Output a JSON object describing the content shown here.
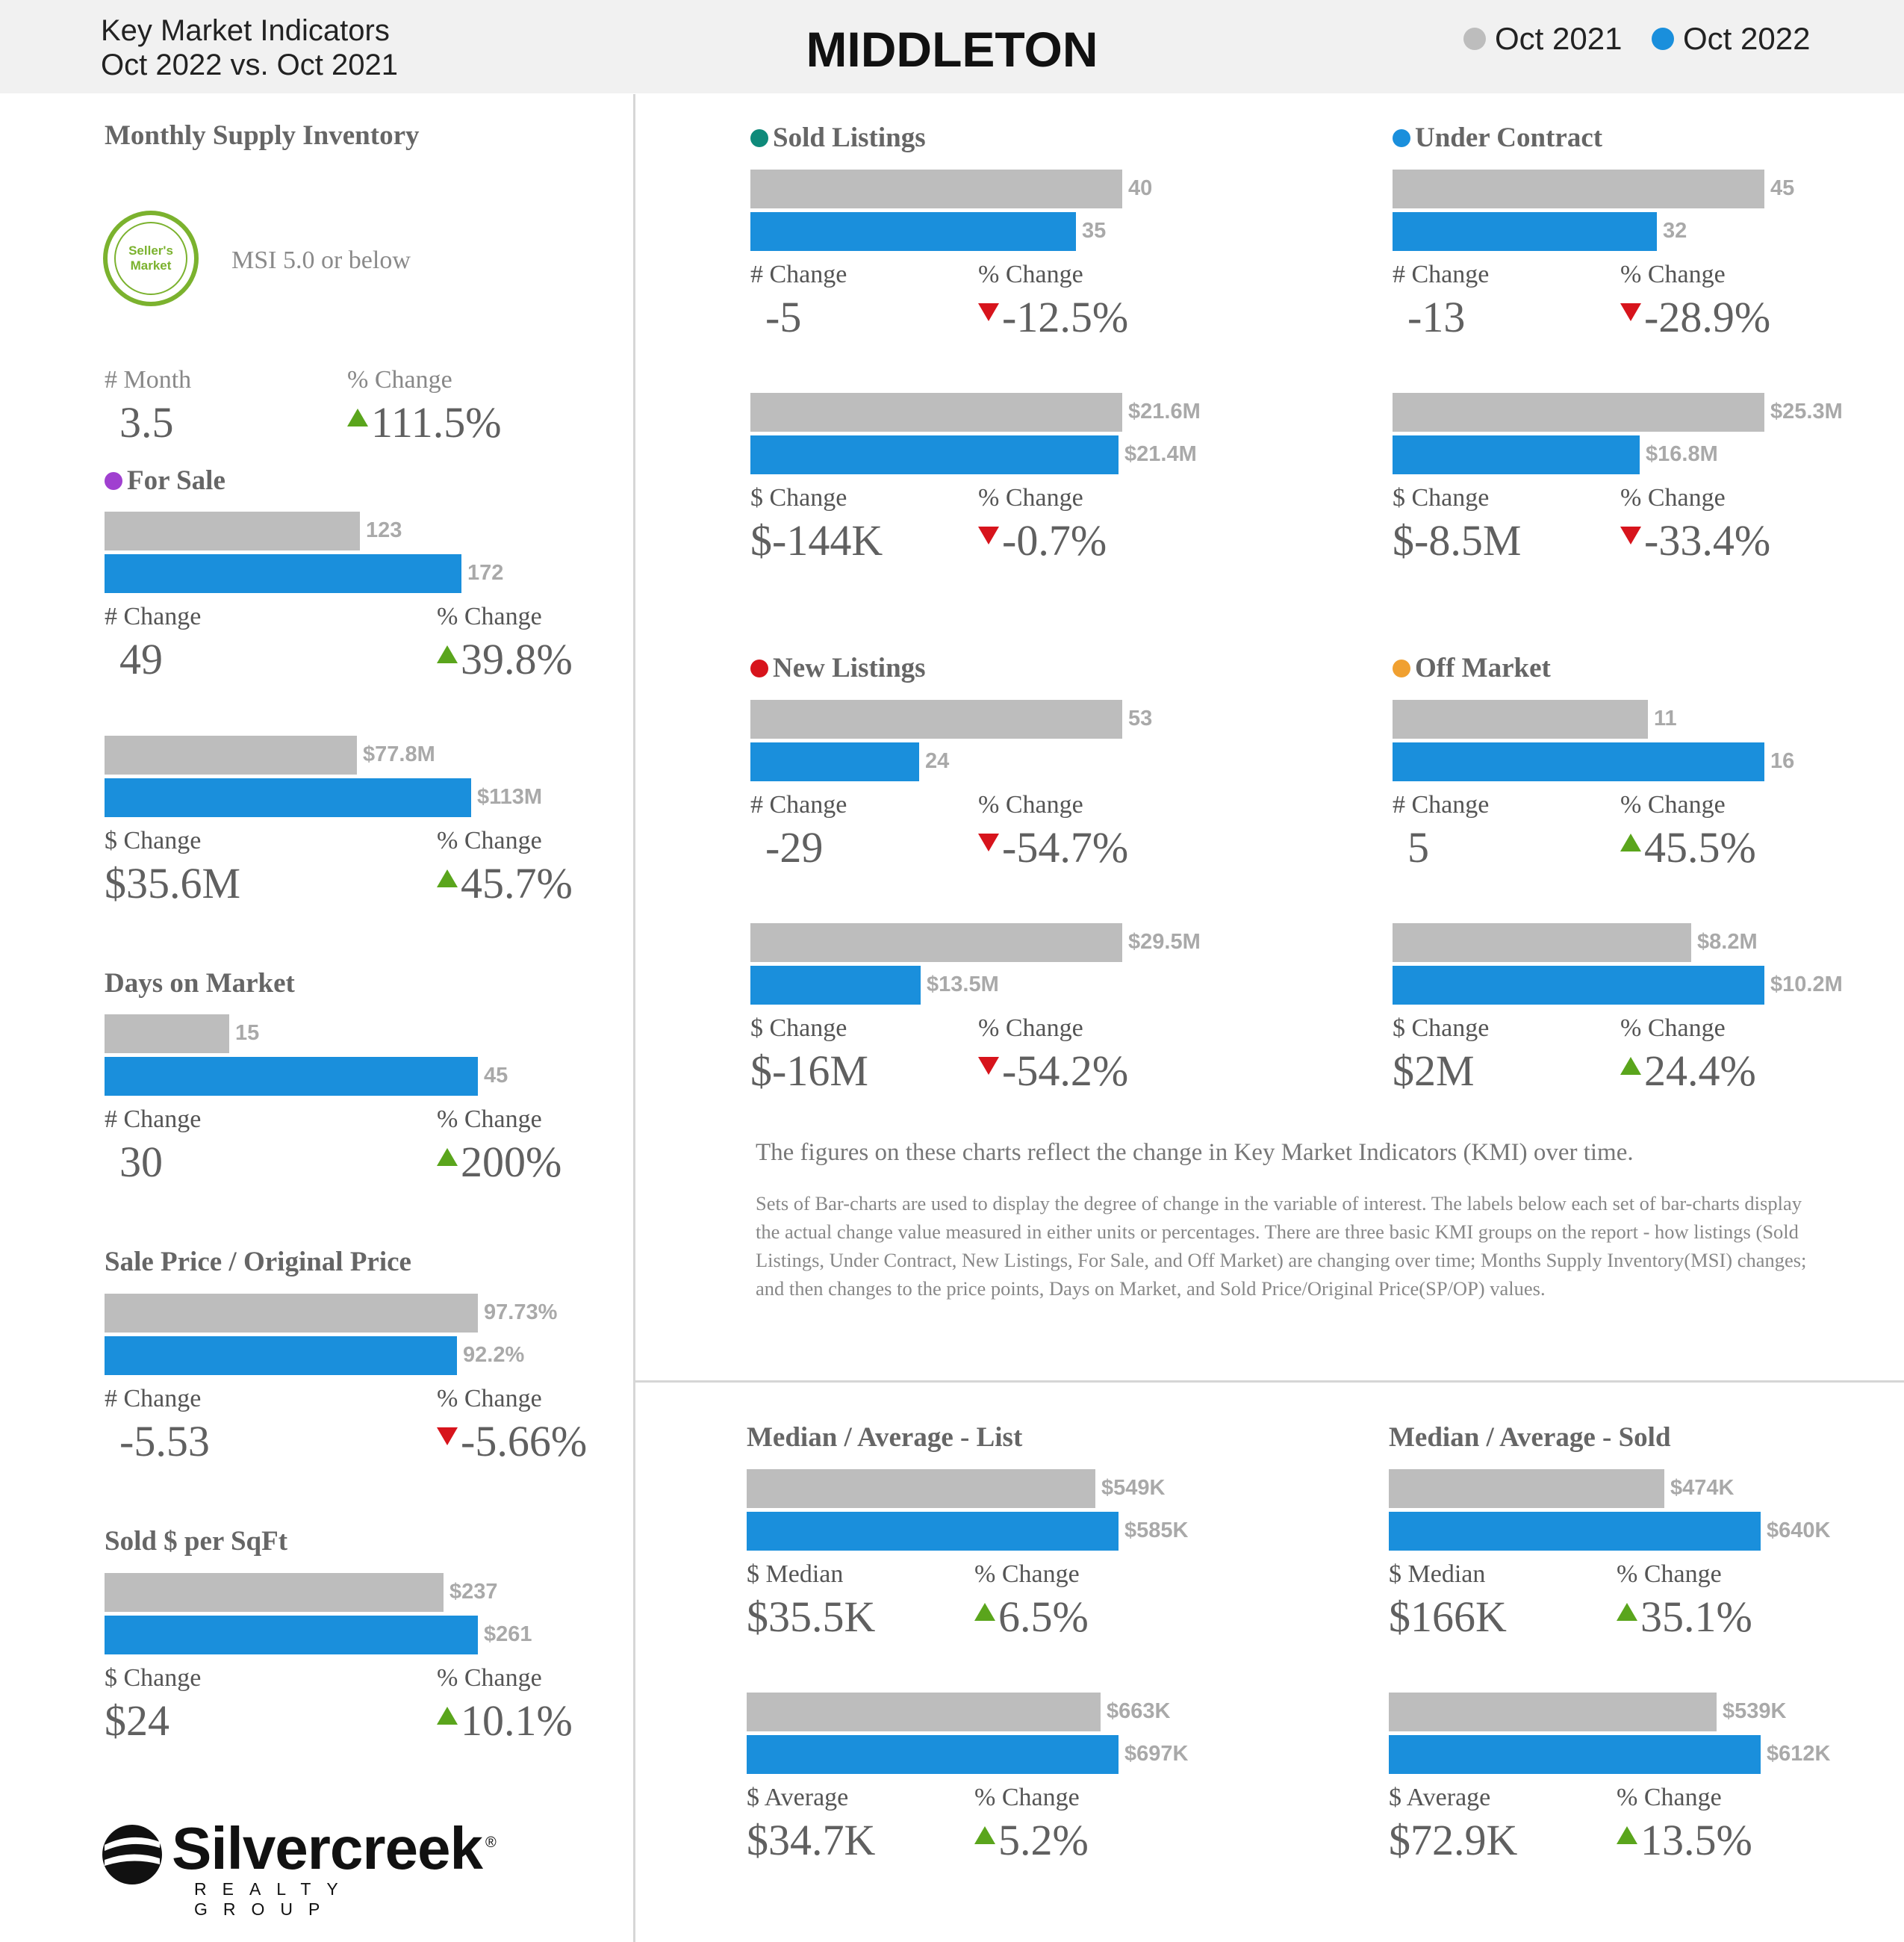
{
  "header": {
    "subtitle_line1": "Key Market Indicators",
    "subtitle_line2": "Oct 2022 vs. Oct 2021",
    "title": "MIDDLETON",
    "legend": [
      {
        "label": "Oct 2021",
        "color": "#bdbdbd"
      },
      {
        "label": "Oct 2022",
        "color": "#1a8fdc"
      }
    ]
  },
  "msi": {
    "title": "Monthly Supply Inventory",
    "badge_line1": "Seller's",
    "badge_line2": "Market",
    "badge_icon": "sellers-market-badge",
    "caption": "MSI 5.0 or below",
    "month_label": "# Month",
    "month_value": "3.5",
    "pct_label": "% Change",
    "pct_value": "111.5%",
    "pct_dir": "up"
  },
  "colors": {
    "oct2021": "#bdbdbd",
    "oct2022": "#1a8fdc",
    "up": "#5aa51c",
    "down": "#d7141c",
    "sold_listings": "#0e8a7a",
    "under_contract": "#1a8fdc",
    "for_sale": "#a040d0",
    "new_listings": "#d7141c",
    "off_market": "#f0a030"
  },
  "chart_data": [
    {
      "id": "for_sale_count",
      "type": "bar",
      "title": "For Sale",
      "dot": "#a040d0",
      "series": [
        {
          "name": "Oct 2021",
          "value": 123,
          "label": "123"
        },
        {
          "name": "Oct 2022",
          "value": 172,
          "label": "172"
        }
      ],
      "change_label": "# Change",
      "change_value": "49",
      "pct_label": "% Change",
      "pct_value": "39.8%",
      "pct_dir": "up"
    },
    {
      "id": "for_sale_dollar",
      "type": "bar",
      "title": "",
      "series": [
        {
          "name": "Oct 2021",
          "value": 77.8,
          "label": "$77.8M"
        },
        {
          "name": "Oct 2022",
          "value": 113,
          "label": "$113M"
        }
      ],
      "change_label": "$ Change",
      "change_value": "$35.6M",
      "pct_label": "% Change",
      "pct_value": "45.7%",
      "pct_dir": "up"
    },
    {
      "id": "days_on_market",
      "type": "bar",
      "title": "Days on Market",
      "series": [
        {
          "name": "Oct 2021",
          "value": 15,
          "label": "15"
        },
        {
          "name": "Oct 2022",
          "value": 45,
          "label": "45"
        }
      ],
      "change_label": "# Change",
      "change_value": "30",
      "pct_label": "% Change",
      "pct_value": "200%",
      "pct_dir": "up"
    },
    {
      "id": "sp_op",
      "type": "bar",
      "title": "Sale Price / Original Price",
      "series": [
        {
          "name": "Oct 2021",
          "value": 97.73,
          "label": "97.73%"
        },
        {
          "name": "Oct 2022",
          "value": 92.2,
          "label": "92.2%"
        }
      ],
      "change_label": "# Change",
      "change_value": "-5.53",
      "pct_label": "% Change",
      "pct_value": "-5.66%",
      "pct_dir": "down"
    },
    {
      "id": "sold_per_sqft",
      "type": "bar",
      "title": "Sold $ per SqFt",
      "series": [
        {
          "name": "Oct 2021",
          "value": 237,
          "label": "$237"
        },
        {
          "name": "Oct 2022",
          "value": 261,
          "label": "$261"
        }
      ],
      "change_label": "$ Change",
      "change_value": "$24",
      "pct_label": "% Change",
      "pct_value": "10.1%",
      "pct_dir": "up"
    },
    {
      "id": "sold_count",
      "type": "bar",
      "title": "Sold Listings",
      "dot": "#0e8a7a",
      "series": [
        {
          "name": "Oct 2021",
          "value": 40,
          "label": "40"
        },
        {
          "name": "Oct 2022",
          "value": 35,
          "label": "35"
        }
      ],
      "change_label": "# Change",
      "change_value": "-5",
      "pct_label": "% Change",
      "pct_value": "-12.5%",
      "pct_dir": "down"
    },
    {
      "id": "sold_dollar",
      "type": "bar",
      "title": "",
      "series": [
        {
          "name": "Oct 2021",
          "value": 21.6,
          "label": "$21.6M"
        },
        {
          "name": "Oct 2022",
          "value": 21.4,
          "label": "$21.4M"
        }
      ],
      "change_label": "$ Change",
      "change_value": "$-144K",
      "pct_label": "% Change",
      "pct_value": "-0.7%",
      "pct_dir": "down"
    },
    {
      "id": "uc_count",
      "type": "bar",
      "title": "Under Contract",
      "dot": "#1a8fdc",
      "series": [
        {
          "name": "Oct 2021",
          "value": 45,
          "label": "45"
        },
        {
          "name": "Oct 2022",
          "value": 32,
          "label": "32"
        }
      ],
      "change_label": "# Change",
      "change_value": "-13",
      "pct_label": "% Change",
      "pct_value": "-28.9%",
      "pct_dir": "down"
    },
    {
      "id": "uc_dollar",
      "type": "bar",
      "title": "",
      "series": [
        {
          "name": "Oct 2021",
          "value": 25.3,
          "label": "$25.3M"
        },
        {
          "name": "Oct 2022",
          "value": 16.8,
          "label": "$16.8M"
        }
      ],
      "change_label": "$ Change",
      "change_value": "$-8.5M",
      "pct_label": "% Change",
      "pct_value": "-33.4%",
      "pct_dir": "down"
    },
    {
      "id": "new_count",
      "type": "bar",
      "title": "New Listings",
      "dot": "#d7141c",
      "series": [
        {
          "name": "Oct 2021",
          "value": 53,
          "label": "53"
        },
        {
          "name": "Oct 2022",
          "value": 24,
          "label": "24"
        }
      ],
      "change_label": "# Change",
      "change_value": "-29",
      "pct_label": "% Change",
      "pct_value": "-54.7%",
      "pct_dir": "down"
    },
    {
      "id": "new_dollar",
      "type": "bar",
      "title": "",
      "series": [
        {
          "name": "Oct 2021",
          "value": 29.5,
          "label": "$29.5M"
        },
        {
          "name": "Oct 2022",
          "value": 13.5,
          "label": "$13.5M"
        }
      ],
      "change_label": "$ Change",
      "change_value": "$-16M",
      "pct_label": "% Change",
      "pct_value": "-54.2%",
      "pct_dir": "down"
    },
    {
      "id": "off_count",
      "type": "bar",
      "title": "Off Market",
      "dot": "#f0a030",
      "series": [
        {
          "name": "Oct 2021",
          "value": 11,
          "label": "11"
        },
        {
          "name": "Oct 2022",
          "value": 16,
          "label": "16"
        }
      ],
      "change_label": "# Change",
      "change_value": "5",
      "pct_label": "% Change",
      "pct_value": "45.5%",
      "pct_dir": "up"
    },
    {
      "id": "off_dollar",
      "type": "bar",
      "title": "",
      "series": [
        {
          "name": "Oct 2021",
          "value": 8.2,
          "label": "$8.2M"
        },
        {
          "name": "Oct 2022",
          "value": 10.2,
          "label": "$10.2M"
        }
      ],
      "change_label": "$ Change",
      "change_value": "$2M",
      "pct_label": "% Change",
      "pct_value": "24.4%",
      "pct_dir": "up"
    },
    {
      "id": "list_median",
      "type": "bar",
      "title": "Median / Average - List",
      "series": [
        {
          "name": "Oct 2021",
          "value": 549,
          "label": "$549K"
        },
        {
          "name": "Oct 2022",
          "value": 585,
          "label": "$585K"
        }
      ],
      "change_label": "$ Median",
      "change_value": "$35.5K",
      "pct_label": "% Change",
      "pct_value": "6.5%",
      "pct_dir": "up"
    },
    {
      "id": "list_average",
      "type": "bar",
      "title": "",
      "series": [
        {
          "name": "Oct 2021",
          "value": 663,
          "label": "$663K"
        },
        {
          "name": "Oct 2022",
          "value": 697,
          "label": "$697K"
        }
      ],
      "change_label": "$ Average",
      "change_value": "$34.7K",
      "pct_label": "% Change",
      "pct_value": "5.2%",
      "pct_dir": "up"
    },
    {
      "id": "sold_median",
      "type": "bar",
      "title": "Median / Average - Sold",
      "series": [
        {
          "name": "Oct 2021",
          "value": 474,
          "label": "$474K"
        },
        {
          "name": "Oct 2022",
          "value": 640,
          "label": "$640K"
        }
      ],
      "change_label": "$ Median",
      "change_value": "$166K",
      "pct_label": "% Change",
      "pct_value": "35.1%",
      "pct_dir": "up"
    },
    {
      "id": "sold_average",
      "type": "bar",
      "title": "",
      "series": [
        {
          "name": "Oct 2021",
          "value": 539,
          "label": "$539K"
        },
        {
          "name": "Oct 2022",
          "value": 612,
          "label": "$612K"
        }
      ],
      "change_label": "$ Average",
      "change_value": "$72.9K",
      "pct_label": "% Change",
      "pct_value": "13.5%",
      "pct_dir": "up"
    }
  ],
  "notes": {
    "headline": "The figures on these charts reflect the change in Key Market Indicators (KMI) over time.",
    "body": "Sets of Bar-charts are used to display the degree of change in the variable of interest. The labels below each set of bar-charts display the actual change value measured in either units or percentages. There are three basic KMI groups on the report - how listings (Sold Listings, Under Contract, New Listings, For Sale, and Off Market) are changing over time; Months Supply Inventory(MSI) changes; and then changes to the price points, Days on Market, and Sold Price/Original Price(SP/OP) values."
  },
  "logo": {
    "name": "Silvercreek",
    "tagline": "REALTY GROUP",
    "mark": "®",
    "icon": "silvercreek-logo-icon"
  }
}
